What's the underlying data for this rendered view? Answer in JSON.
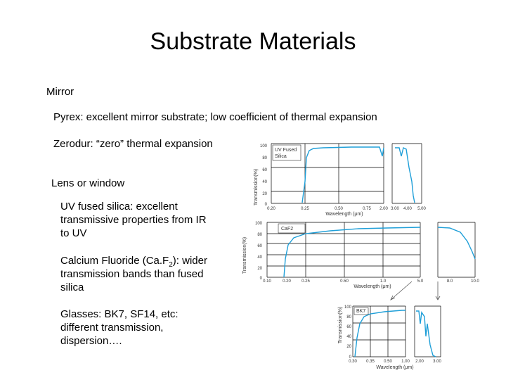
{
  "slide": {
    "title": "Substrate Materials",
    "mirror": "Mirror",
    "pyrex": "Pyrex: excellent mirror substrate; low coefficient of thermal expansion",
    "zerodur": "Zerodur: “zero” thermal expansion",
    "lens": "Lens or window",
    "uv_fused": "UV fused silica: excellent transmissive properties from IR to UV",
    "caf2_a": "Calcium Fluoride (Ca.F",
    "caf2_sub": "2",
    "caf2_b": "): wider transmission bands than fused silica",
    "glasses": "Glasses: BK7, SF14, etc: different transmission, dispersion…."
  },
  "charts": {
    "uv": {
      "legend": "UV Fused\nSilica",
      "ylabel": "Transmission(%)",
      "xlabel": "Wavelength (μm)",
      "yticks": [
        "100",
        "80",
        "60",
        "40",
        "20",
        "0"
      ],
      "xticks": [
        "0.20",
        "0.25",
        "0.50",
        "0.75",
        "2.00",
        "3.00",
        "4.00",
        "5.00"
      ]
    },
    "caf2": {
      "legend": "CaF2",
      "ylabel": "Transmission(%)",
      "xlabel": "Wavelength (μm)",
      "yticks": [
        "100",
        "80",
        "60",
        "40",
        "20",
        "0"
      ],
      "xticks": [
        "0.10",
        "0.20",
        "0.25",
        "0.50",
        "1.0",
        "5.0",
        "8.0",
        "10.0"
      ]
    },
    "bk7": {
      "legend": "BK7",
      "ylabel": "Transmission(%)",
      "xlabel": "Wavelength (μm)",
      "yticks": [
        "100",
        "80",
        "60",
        "40",
        "20",
        "0"
      ],
      "xticks": [
        "0.30",
        "0.35",
        "0.50",
        "1.00",
        "2.00",
        "3.00"
      ]
    }
  }
}
